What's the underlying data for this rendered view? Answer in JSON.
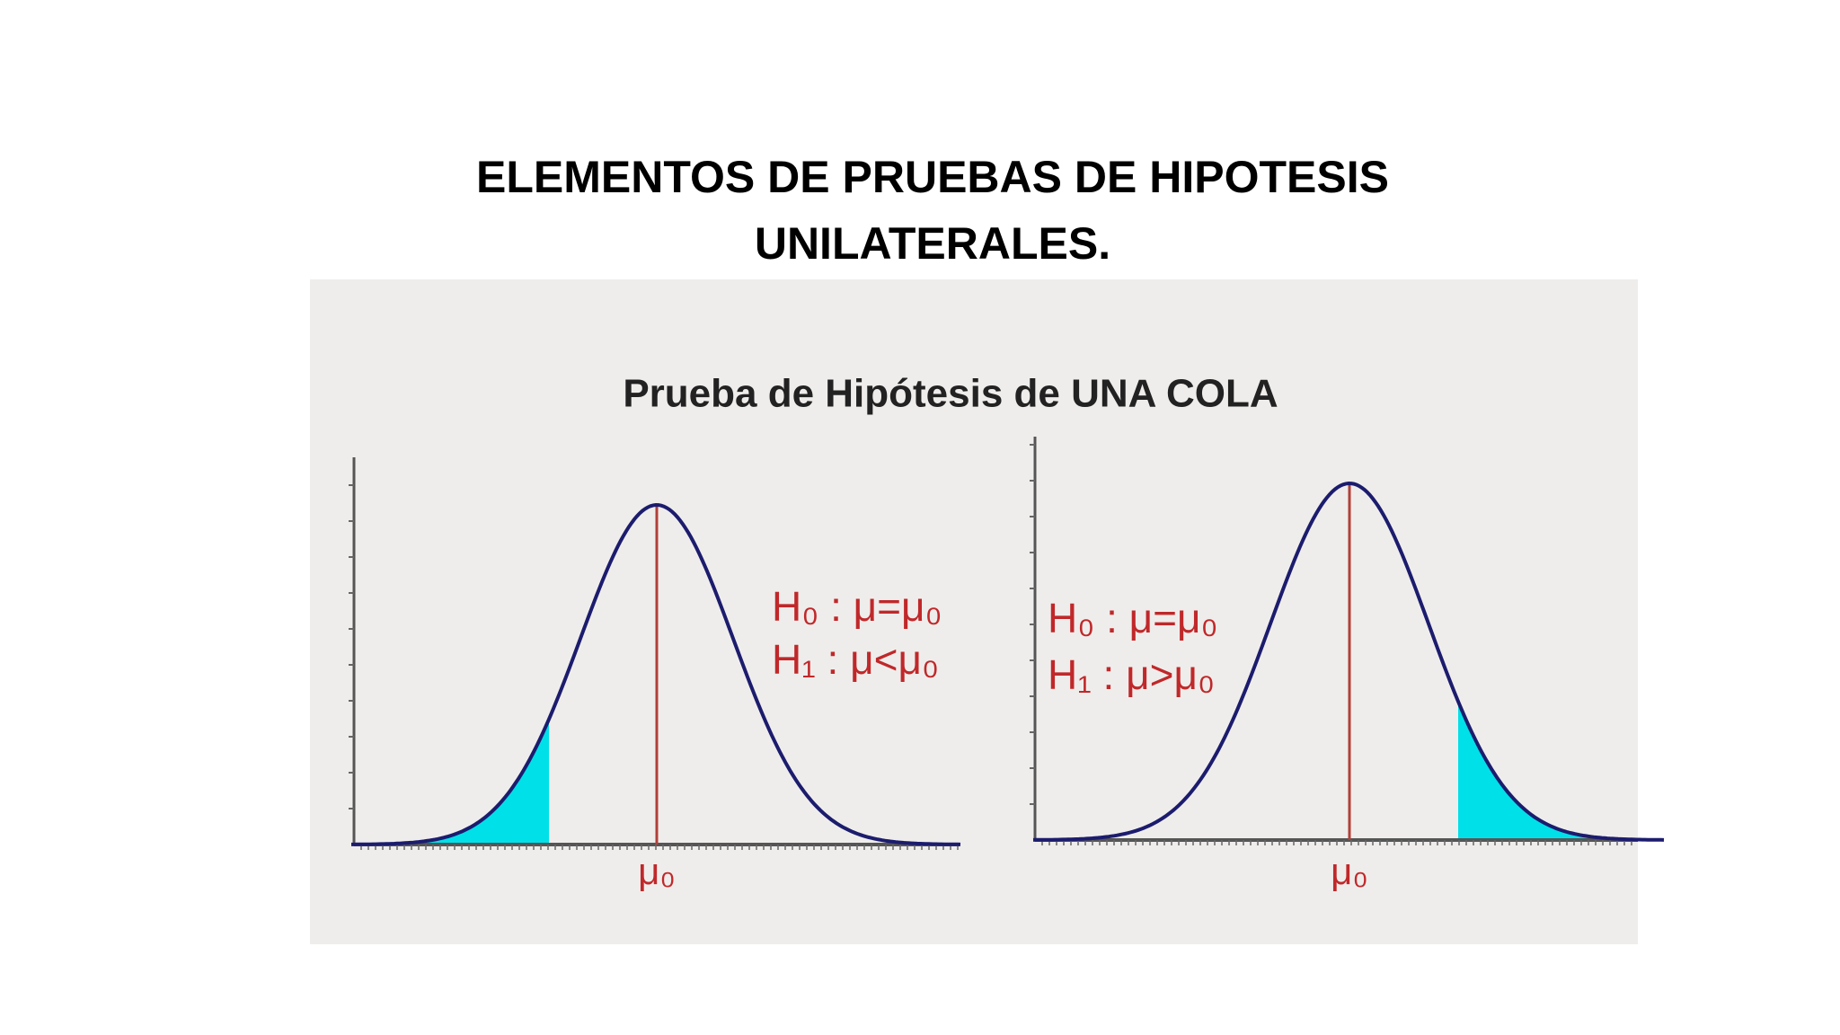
{
  "slide": {
    "title": "ELEMENTOS DE PRUEBAS DE HIPOTESIS UNILATERALES."
  },
  "figure": {
    "title": "Prueba de Hipótesis de UNA COLA",
    "panels": [
      {
        "h0": "H₀ : μ=μ₀",
        "h1": "H₁ : μ<μ₀",
        "axis_label": "μ₀"
      },
      {
        "h0": "H₀ : μ=μ₀",
        "h1": "H₁ : μ>μ₀",
        "axis_label": "μ₀"
      }
    ]
  }
}
